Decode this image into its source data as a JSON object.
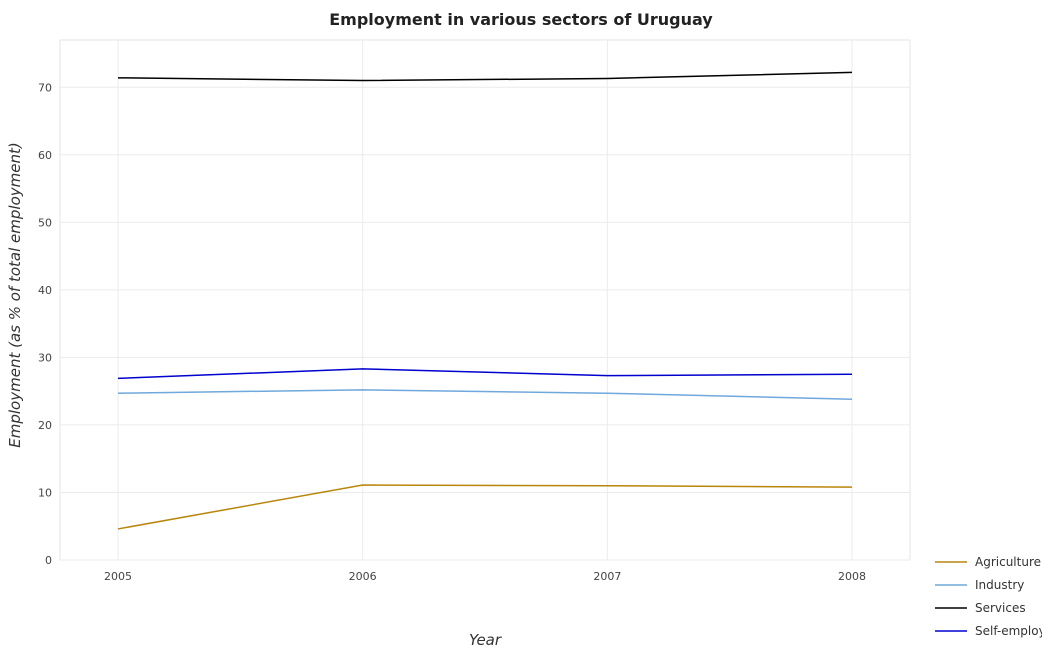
{
  "chart_data": {
    "type": "line",
    "title": "Employment in various sectors of Uruguay",
    "xlabel": "Year",
    "ylabel": "Employment (as % of total employment)",
    "x": [
      "2005",
      "2006",
      "2007",
      "2008"
    ],
    "ylim": [
      0,
      77
    ],
    "yticks": [
      0,
      10,
      20,
      30,
      40,
      50,
      60,
      70
    ],
    "grid": true,
    "legend_position": "bottom-right",
    "series": [
      {
        "name": "Agriculture",
        "color": "#b8860b",
        "values": [
          4.6,
          11.1,
          11.0,
          10.8
        ]
      },
      {
        "name": "Industry",
        "color": "#6fa8dc",
        "values": [
          24.7,
          25.2,
          24.7,
          23.8
        ]
      },
      {
        "name": "Services",
        "color": "#000000",
        "values": [
          71.4,
          71.0,
          71.3,
          72.2
        ]
      },
      {
        "name": "Self-employed",
        "color": "#0000cd",
        "values": [
          26.9,
          28.3,
          27.3,
          27.5
        ]
      }
    ]
  }
}
